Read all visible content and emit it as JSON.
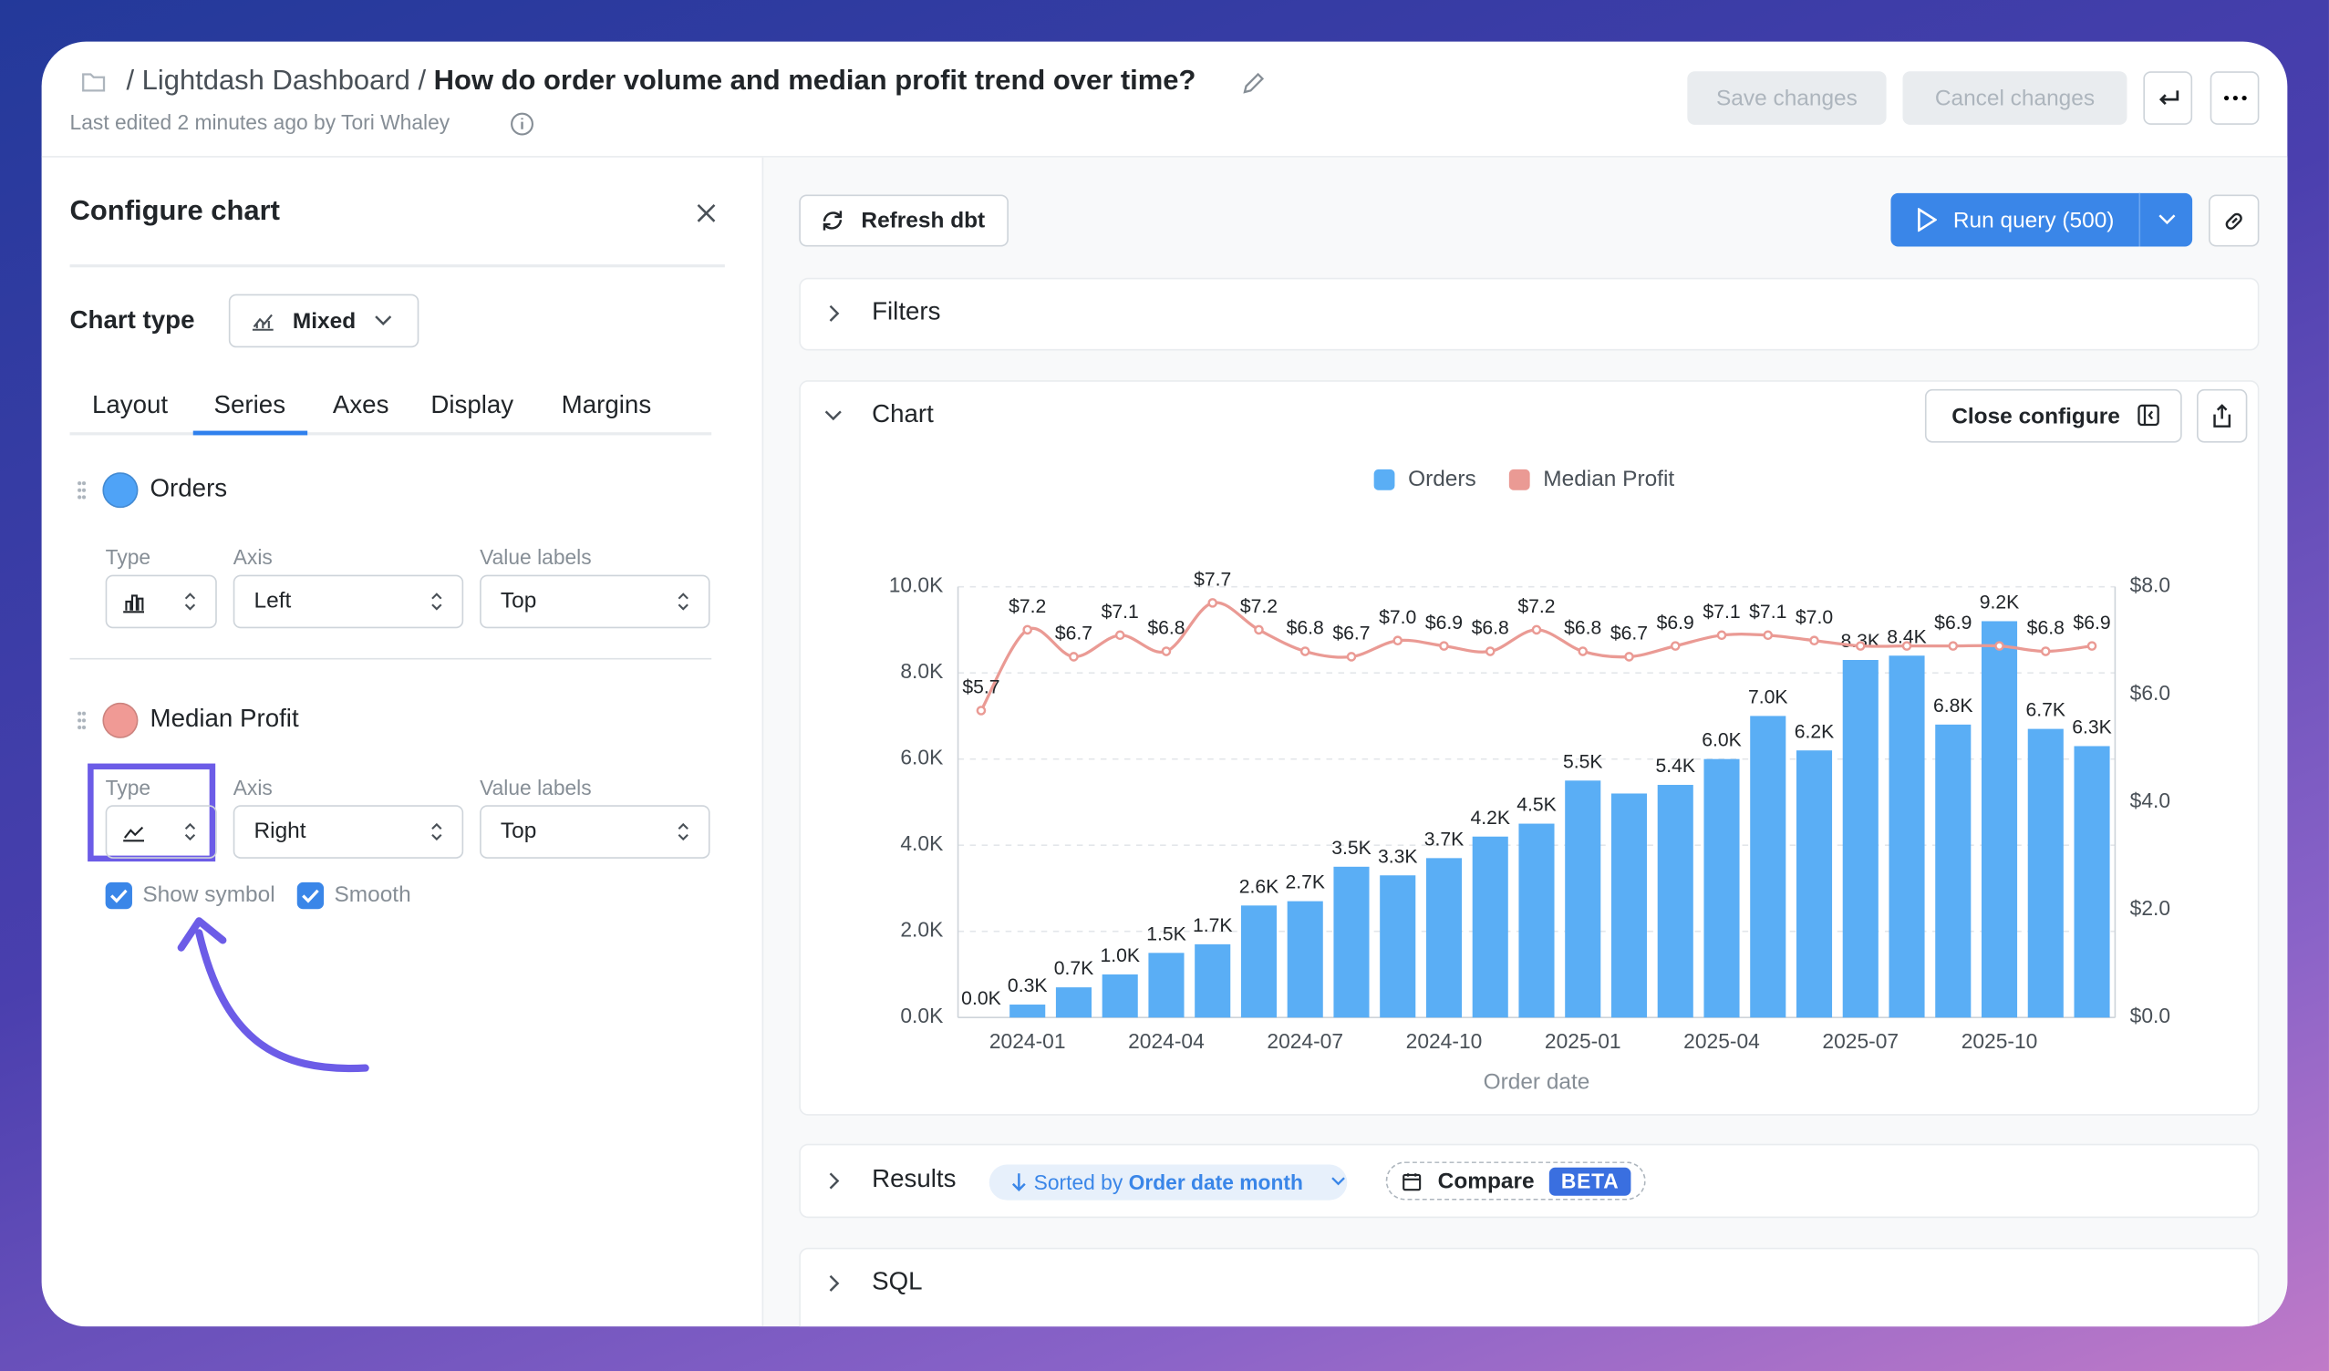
{
  "header": {
    "breadcrumb": "Lightdash Dashboard",
    "title": "How do order volume and median profit trend over time?",
    "last_edited": "Last edited 2 minutes ago by Tori Whaley",
    "save": "Save changes",
    "cancel": "Cancel changes"
  },
  "config": {
    "title": "Configure chart",
    "chart_type_label": "Chart type",
    "chart_type": "Mixed",
    "tabs": [
      "Layout",
      "Series",
      "Axes",
      "Display",
      "Margins"
    ],
    "series": [
      {
        "name": "Orders",
        "type_label": "Type",
        "axis_label": "Axis",
        "axis": "Left",
        "value_labels_label": "Value labels",
        "value_labels": "Top"
      },
      {
        "name": "Median Profit",
        "type_label": "Type",
        "axis_label": "Axis",
        "axis": "Right",
        "value_labels_label": "Value labels",
        "value_labels": "Top",
        "show_symbol": "Show symbol",
        "smooth": "Smooth"
      }
    ]
  },
  "main": {
    "refresh": "Refresh dbt",
    "run_query": "Run query (500)",
    "filters": "Filters",
    "chart": "Chart",
    "close_configure": "Close configure",
    "results": "Results",
    "sorted_by": "Sorted by",
    "sorted_field": "Order date month",
    "compare": "Compare",
    "beta": "BETA",
    "sql": "SQL"
  },
  "chart_data": {
    "type": "bar",
    "x_label": "Order date",
    "categories": [
      null,
      "2024-01",
      null,
      null,
      "2024-04",
      null,
      null,
      "2024-07",
      null,
      null,
      "2024-10",
      null,
      null,
      "2025-01",
      null,
      null,
      "2025-04",
      null,
      null,
      "2025-07",
      null,
      null,
      "2025-10",
      null,
      null
    ],
    "series": [
      {
        "name": "Orders",
        "type": "bar",
        "color": "#5aaef5",
        "values": [
          0,
          300,
          700,
          1000,
          1500,
          1700,
          2600,
          2700,
          3500,
          3300,
          3700,
          4200,
          4500,
          5500,
          5200,
          5400,
          6000,
          7000,
          6200,
          8300,
          8400,
          6800,
          9200,
          6700,
          6300
        ],
        "value_labels": [
          "0.0K",
          "0.3K",
          "0.7K",
          "1.0K",
          "1.5K",
          "1.7K",
          "2.6K",
          "2.7K",
          "3.5K",
          "3.3K",
          "3.7K",
          "4.2K",
          "4.5K",
          "5.5K",
          null,
          "5.4K",
          "6.0K",
          "7.0K",
          "6.2K",
          "8.3K",
          "8.4K",
          "6.8K",
          "9.2K",
          "6.7K",
          "6.3K"
        ]
      },
      {
        "name": "Median Profit",
        "type": "line",
        "axis": "y2",
        "color": "#ea9a94",
        "values": [
          5.7,
          7.2,
          6.7,
          7.1,
          6.8,
          7.7,
          7.2,
          6.8,
          6.7,
          7.0,
          6.9,
          6.8,
          7.2,
          6.8,
          6.7,
          6.9,
          7.1,
          7.1,
          7.0,
          6.9,
          6.9,
          6.9,
          6.9,
          6.8,
          6.9
        ],
        "value_labels": [
          "$5.7",
          "$7.2",
          "$6.7",
          "$7.1",
          "$6.8",
          "$7.7",
          "$7.2",
          "$6.8",
          "$6.7",
          "$7.0",
          "$6.9",
          "$6.8",
          "$7.2",
          "$6.8",
          "$6.7",
          "$6.9",
          "$7.1",
          "$7.1",
          "$7.0",
          null,
          null,
          "$6.9",
          null,
          "$6.8",
          "$6.9"
        ]
      }
    ],
    "ylim": [
      0,
      10000
    ],
    "yticks": [
      {
        "value": 0,
        "label": "0.0K"
      },
      {
        "value": 2000,
        "label": "2.0K"
      },
      {
        "value": 4000,
        "label": "4.0K"
      },
      {
        "value": 6000,
        "label": "6.0K"
      },
      {
        "value": 8000,
        "label": "8.0K"
      },
      {
        "value": 10000,
        "label": "10.0K"
      }
    ],
    "y2lim": [
      0,
      8
    ],
    "y2ticks": [
      {
        "value": 0,
        "label": "$0.0"
      },
      {
        "value": 2,
        "label": "$2.0"
      },
      {
        "value": 4,
        "label": "$4.0"
      },
      {
        "value": 6,
        "label": "$6.0"
      },
      {
        "value": 8,
        "label": "$8.0"
      }
    ],
    "grid": true,
    "smooth": true,
    "legend": "top"
  }
}
